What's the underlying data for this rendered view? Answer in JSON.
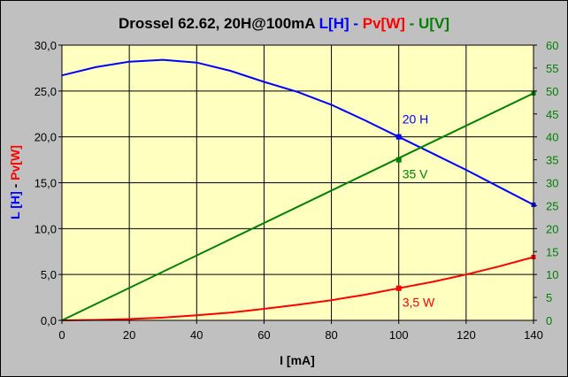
{
  "chart_data": {
    "type": "line",
    "title_parts": [
      {
        "text": "Drossel 62.62, 20H@100mA  ",
        "color": "#000000"
      },
      {
        "text": "L[H]",
        "color": "#0000ff"
      },
      {
        "text": " - ",
        "color": "#0000ff"
      },
      {
        "text": "Pv[W]",
        "color": "#ff0000"
      },
      {
        "text": " - ",
        "color": "#008000"
      },
      {
        "text": "U[V]",
        "color": "#008000"
      }
    ],
    "xlabel": "I [mA]",
    "ylabel_parts": [
      {
        "text": "L [H]",
        "color": "#0000ff"
      },
      {
        "text": " - ",
        "color": "#000000"
      },
      {
        "text": "Pv[W]",
        "color": "#ff0000"
      }
    ],
    "xlim": [
      0,
      140
    ],
    "ylim_left": [
      0,
      30
    ],
    "ylim_right": [
      0,
      60
    ],
    "x_ticks": [
      "0",
      "20",
      "40",
      "60",
      "80",
      "100",
      "120",
      "140"
    ],
    "y_left_ticks": [
      "0,0",
      "5,0",
      "10,0",
      "15,0",
      "20,0",
      "25,0",
      "30,0"
    ],
    "y_right_ticks": [
      "0",
      "5",
      "10",
      "15",
      "20",
      "25",
      "30",
      "35",
      "40",
      "45",
      "50",
      "55",
      "60"
    ],
    "grid": true,
    "plot_background": "#ffffc0",
    "series": [
      {
        "name": "L[H]",
        "axis": "left",
        "color": "#0000ff",
        "x": [
          0,
          10,
          20,
          30,
          40,
          50,
          60,
          70,
          80,
          90,
          100,
          110,
          120,
          130,
          140
        ],
        "y": [
          26.7,
          27.6,
          28.2,
          28.4,
          28.1,
          27.2,
          26.0,
          24.9,
          23.5,
          21.8,
          20.0,
          18.2,
          16.4,
          14.5,
          12.6
        ]
      },
      {
        "name": "Pv[W]",
        "axis": "left",
        "color": "#ff0000",
        "x": [
          0,
          10,
          20,
          30,
          40,
          50,
          60,
          70,
          80,
          90,
          100,
          110,
          120,
          130,
          140
        ],
        "y": [
          0.0,
          0.05,
          0.14,
          0.3,
          0.55,
          0.85,
          1.25,
          1.7,
          2.2,
          2.8,
          3.5,
          4.2,
          5.0,
          5.9,
          6.9
        ]
      },
      {
        "name": "U[V]",
        "axis": "right",
        "color": "#008000",
        "x": [
          0,
          140
        ],
        "y": [
          0,
          49.5
        ]
      }
    ],
    "annotations": [
      {
        "text": "20 H",
        "color": "#0000ff",
        "x": 100,
        "y": 20.0,
        "axis": "left",
        "label_pos": "above-right"
      },
      {
        "text": "35 V",
        "color": "#008000",
        "x": 100,
        "y": 35.0,
        "axis": "right",
        "label_pos": "below-right"
      },
      {
        "text": "3,5 W",
        "color": "#ff0000",
        "x": 100,
        "y": 3.5,
        "axis": "left",
        "label_pos": "below-right"
      }
    ]
  }
}
